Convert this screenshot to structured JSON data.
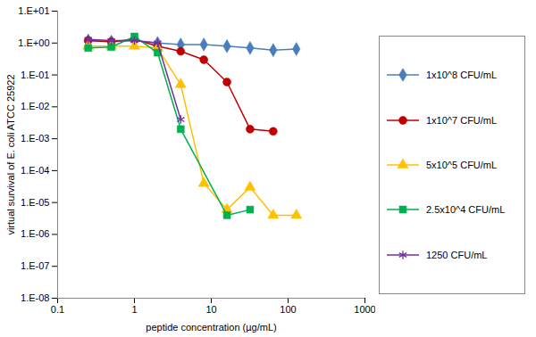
{
  "chart_data": {
    "type": "line",
    "x_label": "peptide concentration (µg/mL)",
    "y_label": "virtual survival of E. coli ATCC 25922",
    "log": true,
    "grid": false,
    "legend": "right",
    "xlim": [
      0.1,
      1000
    ],
    "xticks": [
      0.1,
      1,
      10,
      100,
      1000
    ],
    "ylim": [
      1e-08,
      10
    ],
    "yticks": [
      {
        "value": 10,
        "label": "1.E+01"
      },
      {
        "value": 1,
        "label": "1.E+00"
      },
      {
        "value": 0.1,
        "label": "1.E-01"
      },
      {
        "value": 0.01,
        "label": "1.E-02"
      },
      {
        "value": 0.001,
        "label": "1.E-03"
      },
      {
        "value": 0.0001,
        "label": "1.E-04"
      },
      {
        "value": 1e-05,
        "label": "1.E-05"
      },
      {
        "value": 1e-06,
        "label": "1.E-06"
      },
      {
        "value": 1e-07,
        "label": "1.E-07"
      },
      {
        "value": 1e-08,
        "label": "1.E-08"
      }
    ],
    "series": [
      {
        "name": "1x10^8 CFU/mL",
        "color": "#4a7ebb",
        "marker": "diamond",
        "x": [
          0.25,
          0.5,
          1,
          2,
          4,
          8,
          16,
          32,
          64,
          128
        ],
        "values": [
          1.2,
          1.1,
          1.2,
          1.0,
          0.9,
          0.9,
          0.8,
          0.7,
          0.6,
          0.65
        ]
      },
      {
        "name": "1x10^7 CFU/mL",
        "color": "#c00000",
        "marker": "circle",
        "x": [
          0.25,
          0.5,
          1,
          2,
          4,
          8,
          16,
          32,
          64
        ],
        "values": [
          1.2,
          1.1,
          1.3,
          0.8,
          0.55,
          0.3,
          0.06,
          0.002,
          0.0017
        ]
      },
      {
        "name": "5x10^5 CFU/mL",
        "color": "#ffc000",
        "marker": "triangle",
        "x": [
          0.25,
          0.5,
          1,
          2,
          4,
          8,
          16,
          32,
          64,
          128
        ],
        "values": [
          0.8,
          0.8,
          0.8,
          0.7,
          0.05,
          4e-05,
          6e-06,
          3e-05,
          4e-06,
          4e-06
        ]
      },
      {
        "name": "2.5x10^4 CFU/mL",
        "color": "#00b050",
        "marker": "square",
        "x": [
          0.25,
          0.5,
          1,
          2,
          4,
          16,
          32
        ],
        "values": [
          0.7,
          0.75,
          1.6,
          0.5,
          0.002,
          4e-06,
          6e-06
        ]
      },
      {
        "name": "1250 CFU/mL",
        "color": "#7030a0",
        "marker": "asterisk",
        "x": [
          0.25,
          0.5,
          1,
          2,
          4
        ],
        "values": [
          1.3,
          1.2,
          1.2,
          1.0,
          0.004
        ]
      }
    ]
  }
}
